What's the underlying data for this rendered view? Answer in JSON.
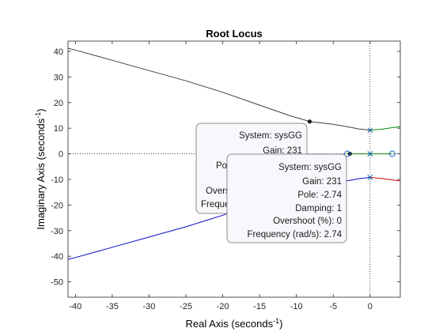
{
  "chart_data": {
    "type": "line",
    "title": "Root Locus",
    "xlabel": "Real Axis (seconds",
    "ylabel": "Imaginary Axis (seconds",
    "label_exponent": "-1",
    "label_close": ")",
    "xlim": [
      -41,
      4.1
    ],
    "ylim": [
      -56,
      44
    ],
    "xticks": [
      -40,
      -35,
      -30,
      -25,
      -20,
      -15,
      -10,
      -5,
      0
    ],
    "yticks": [
      -50,
      -40,
      -30,
      -20,
      -10,
      0,
      10,
      20,
      30,
      40
    ],
    "grid": false,
    "series": [
      {
        "color": "#404040",
        "points": [
          [
            0,
            9.2
          ],
          [
            -1.5,
            9.7
          ],
          [
            -3,
            10.5
          ],
          [
            -5,
            11.5
          ],
          [
            -8.2,
            12.6
          ],
          [
            -11,
            15
          ],
          [
            -15,
            19
          ],
          [
            -20,
            24
          ],
          [
            -25,
            28.5
          ],
          [
            -30,
            32.5
          ],
          [
            -35,
            36.5
          ],
          [
            -40,
            40.5
          ],
          [
            -41,
            41.2
          ]
        ]
      },
      {
        "color": "#0a0ac8",
        "points": [
          [
            0,
            -9.2
          ],
          [
            -1.5,
            -9.7
          ],
          [
            -3,
            -10.5
          ],
          [
            -5,
            -11.5
          ],
          [
            -8.2,
            -12.6
          ],
          [
            -11,
            -15
          ],
          [
            -15,
            -19
          ],
          [
            -20,
            -24
          ],
          [
            -25,
            -28.5
          ],
          [
            -30,
            -32.5
          ],
          [
            -35,
            -36.5
          ],
          [
            -40,
            -40.5
          ],
          [
            -41,
            -41.2
          ]
        ]
      },
      {
        "color": "#0a8a0a",
        "points": [
          [
            0,
            9.2
          ],
          [
            1.5,
            9.6
          ],
          [
            3,
            10.2
          ],
          [
            4.1,
            10.6
          ]
        ]
      },
      {
        "color": "#d40000",
        "points": [
          [
            0,
            -9.2
          ],
          [
            1.5,
            -9.6
          ],
          [
            3,
            -10.2
          ],
          [
            4.1,
            -10.6
          ]
        ]
      },
      {
        "color": "#0a8a0a",
        "points": [
          [
            -3.1,
            0
          ],
          [
            0,
            0
          ],
          [
            3,
            0
          ]
        ]
      }
    ],
    "poles": [
      [
        0,
        9.2
      ],
      [
        0,
        -9.2
      ],
      [
        0,
        0
      ]
    ],
    "zeros": [
      [
        3,
        0
      ],
      [
        -3.1,
        0
      ]
    ],
    "markers": [
      [
        -8.2,
        12.6
      ],
      [
        -2.74,
        0
      ]
    ],
    "reference_lines": {
      "x": 0,
      "y": 0
    }
  },
  "datatips": [
    {
      "lines": [
        "System: sysGG",
        "Gain: 231",
        "Pole",
        "Overs",
        "Freque"
      ]
    },
    {
      "lines": [
        "System: sysGG",
        "Gain: 231",
        "Pole: -2.74",
        "Damping: 1",
        "Overshoot (%): 0",
        "Frequency (rad/s): 2.74"
      ]
    }
  ],
  "colors": {
    "axes": "#262626",
    "pole_marker": "#1f6fc0",
    "zero_marker": "#1f6fc0",
    "tip_border": "#8c8c8c",
    "tip_fill": "#f8f8fc"
  }
}
